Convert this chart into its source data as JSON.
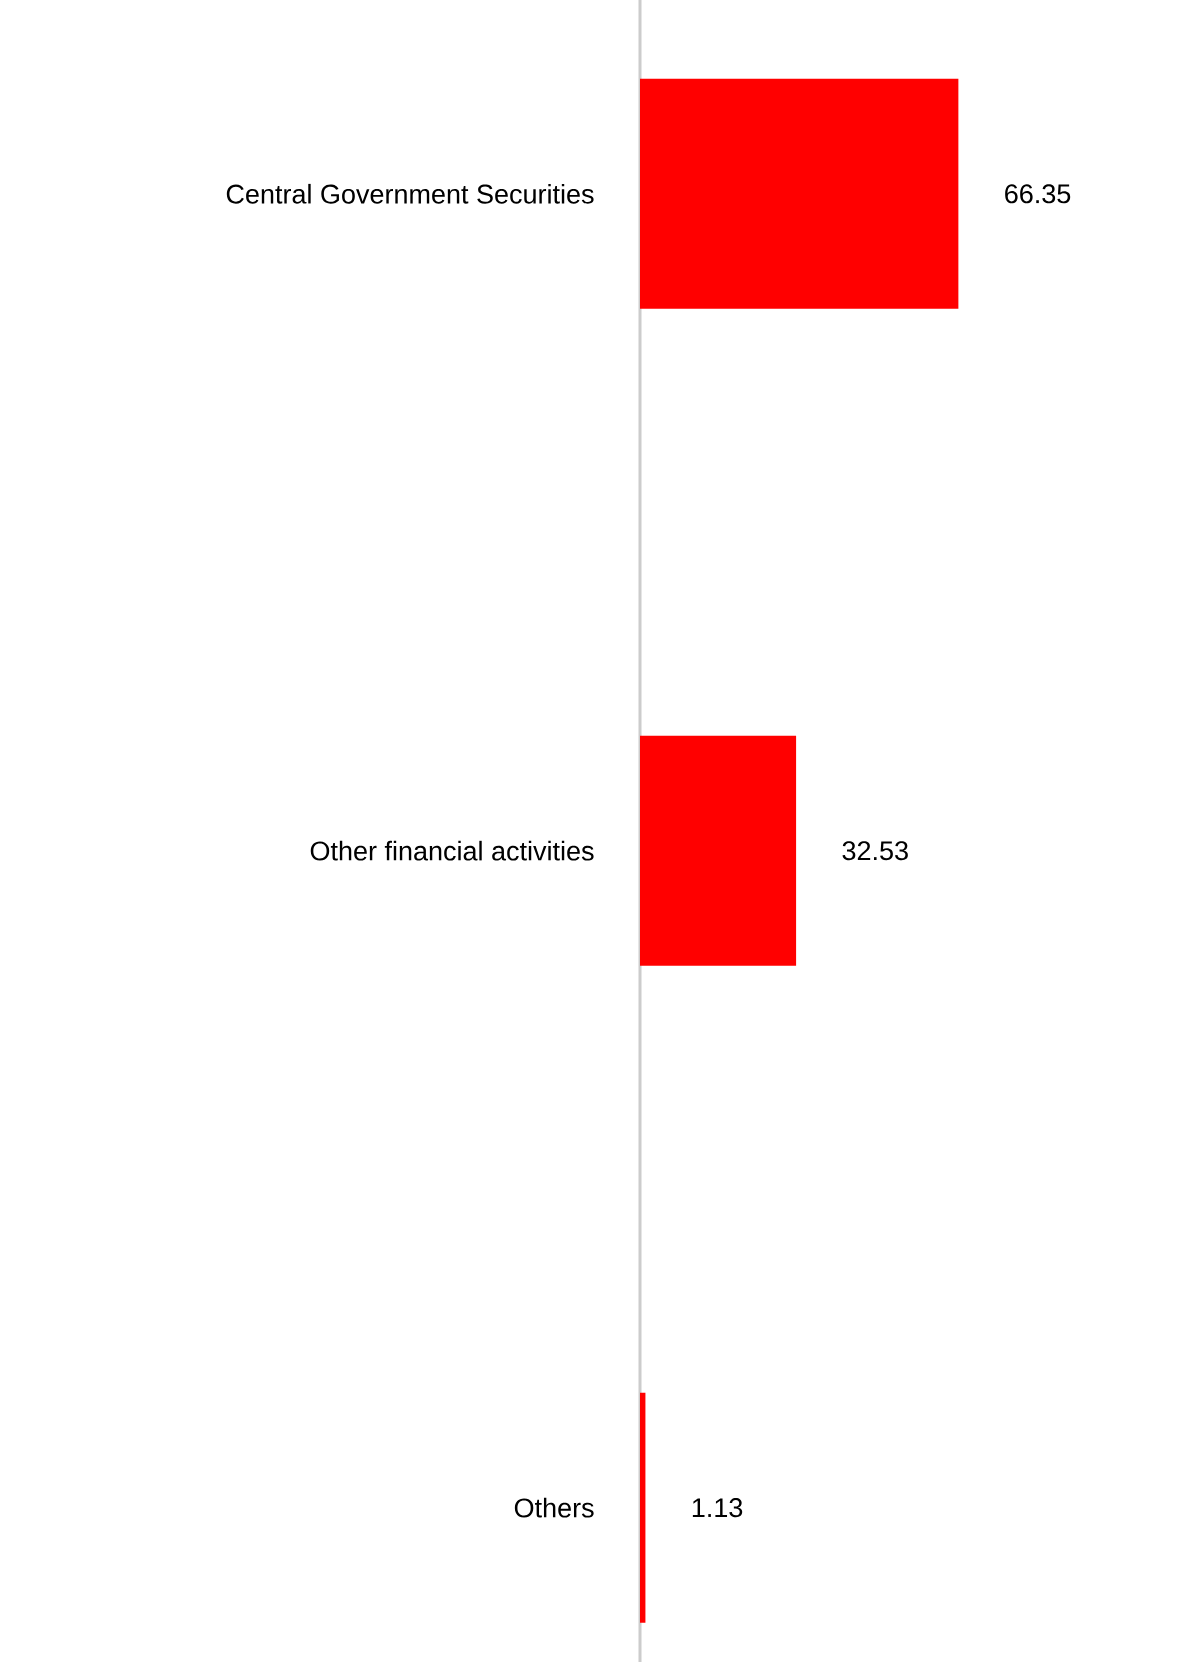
{
  "chart_data": {
    "type": "bar",
    "orientation": "horizontal",
    "categories": [
      "Central Government Securities",
      "Other financial activities",
      "Others"
    ],
    "values": [
      66.35,
      32.53,
      1.13
    ],
    "color": "#ff0000",
    "data_labels": true
  }
}
